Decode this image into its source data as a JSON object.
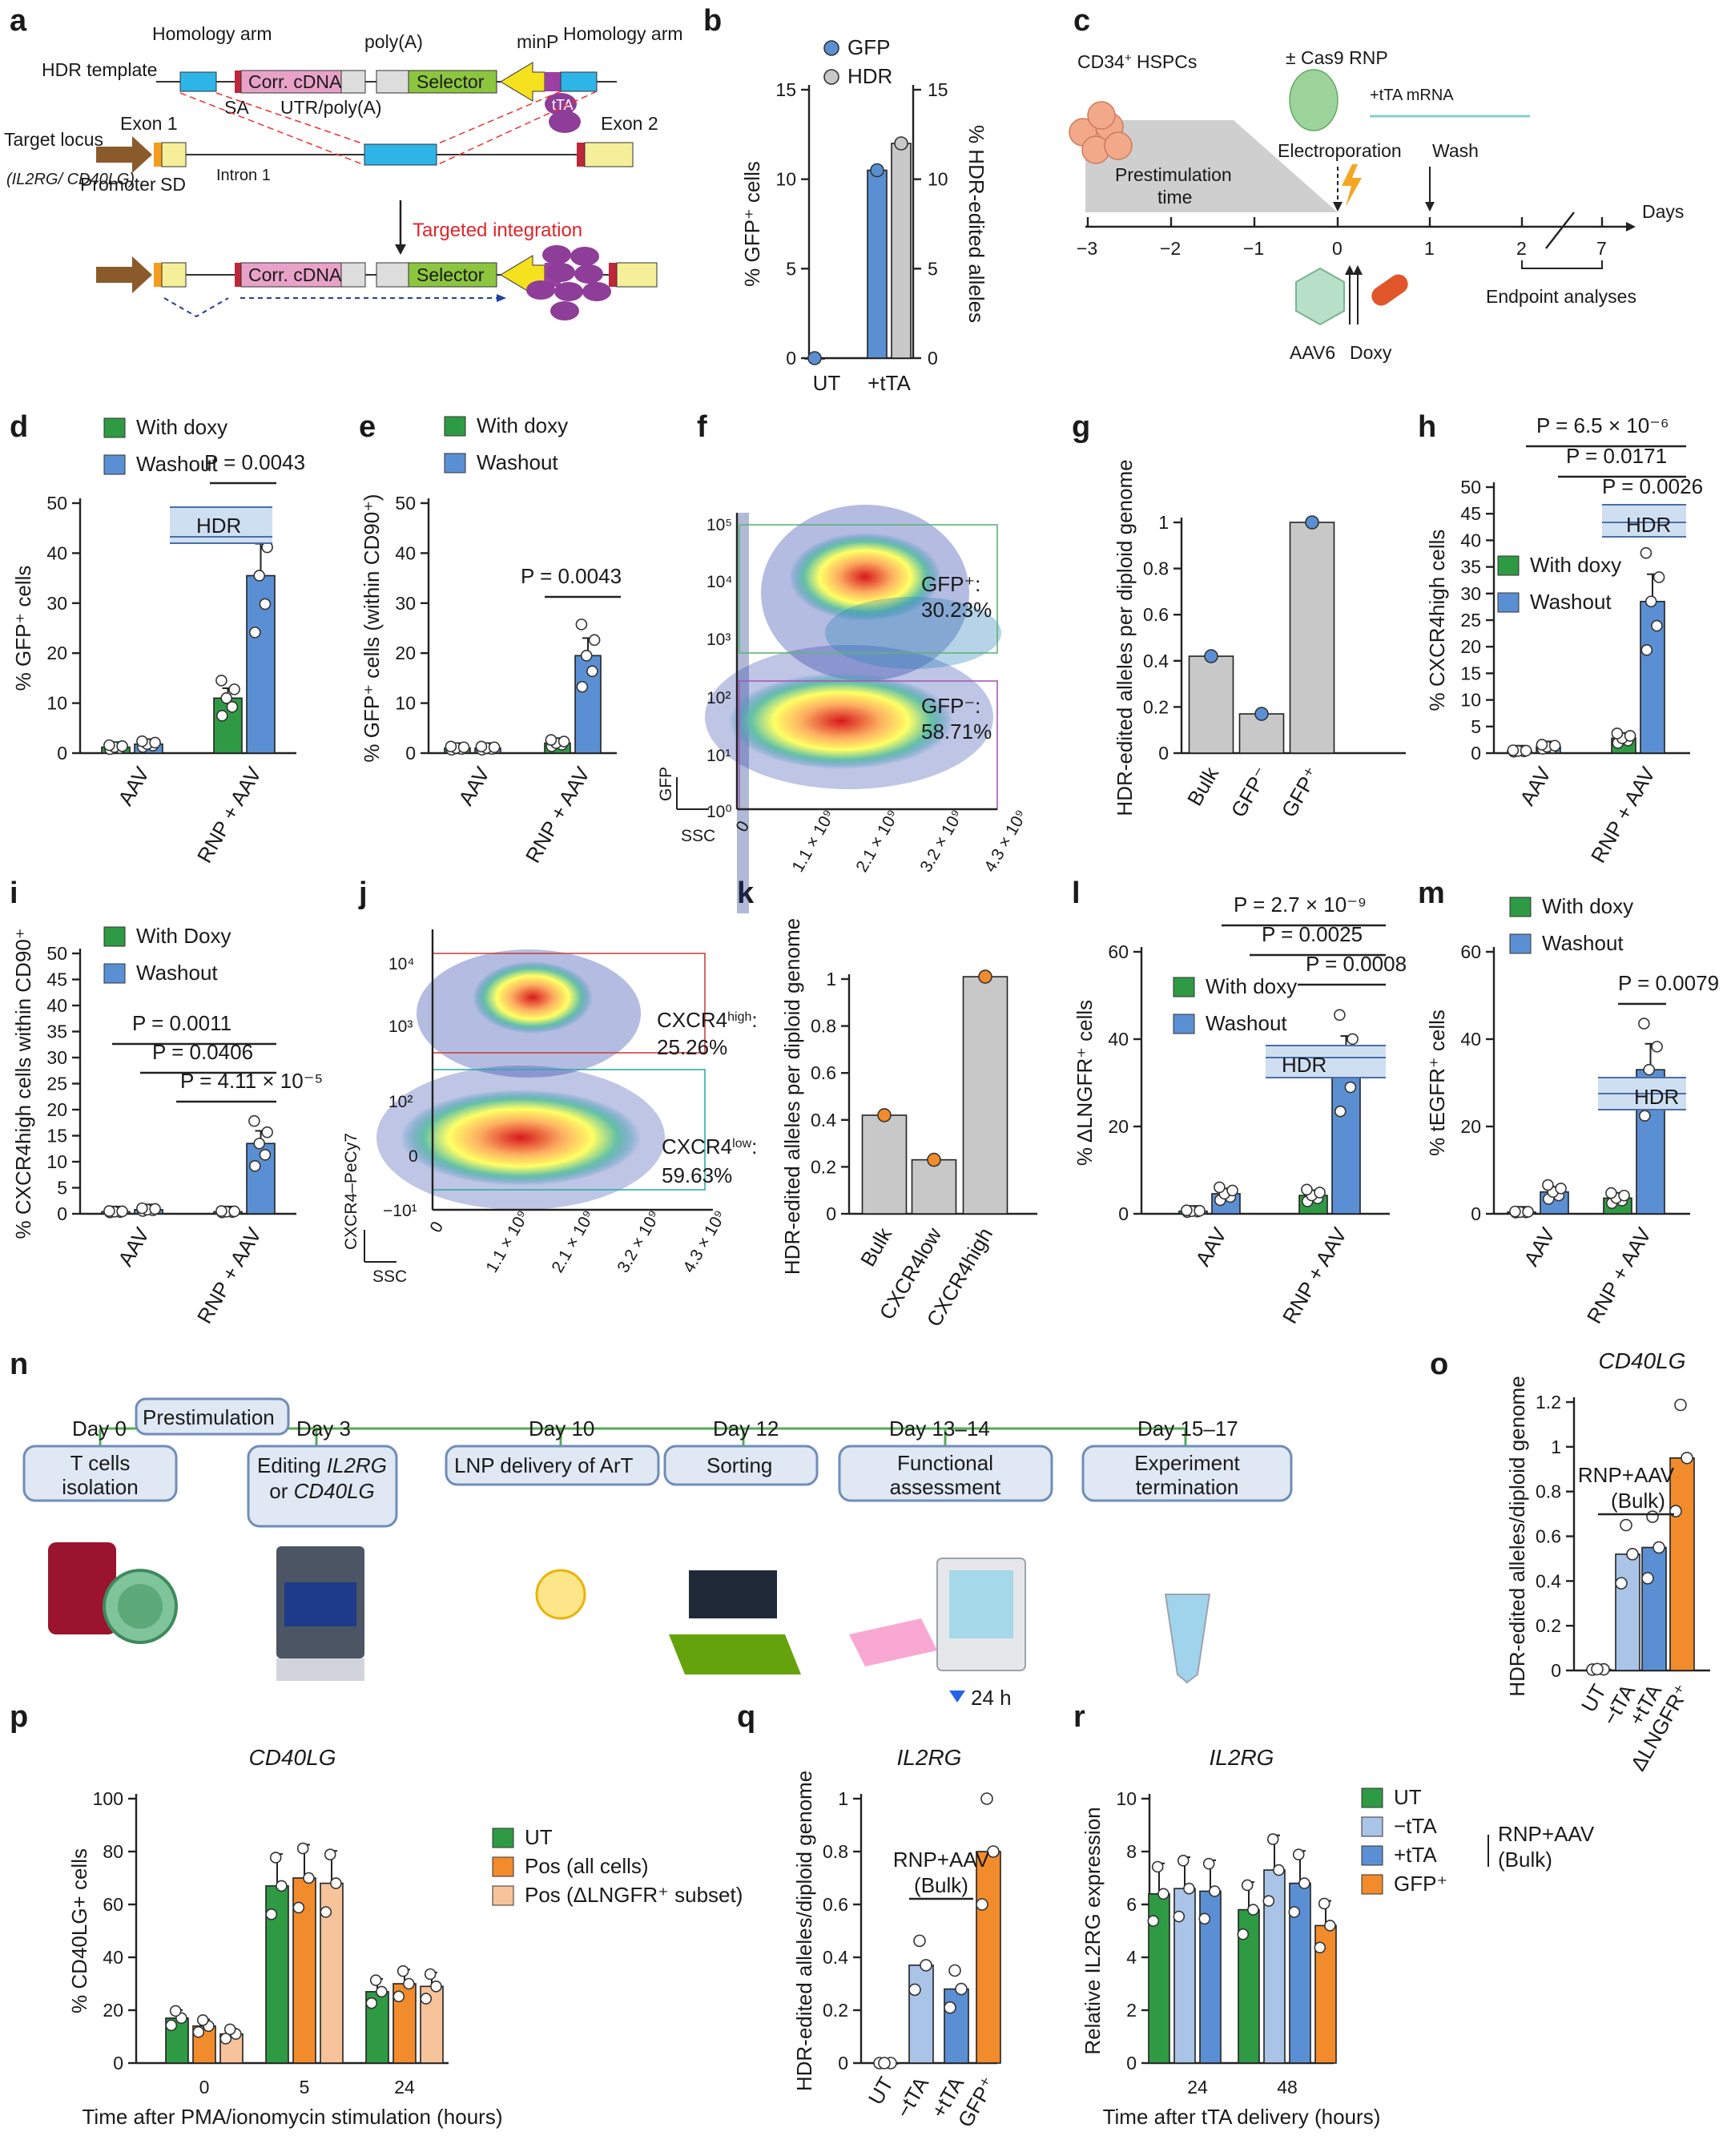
{
  "colors": {
    "green": "#2f9a44",
    "blue": "#5b8fd3",
    "gray": "#c8c8c8",
    "orange": "#f28b2b",
    "lightblue": "#aac4e8",
    "peach": "#f7c39a",
    "purple": "#8e3d98",
    "hdr": "#cfdff2"
  },
  "panel_letters": {
    "a": "a",
    "b": "b",
    "c": "c",
    "d": "d",
    "e": "e",
    "f": "f",
    "g": "g",
    "h": "h",
    "i": "i",
    "j": "j",
    "k": "k",
    "l": "l",
    "m": "m",
    "n": "n",
    "o": "o",
    "p": "p",
    "q": "q",
    "r": "r"
  },
  "panel_a": {
    "homology_arm_left": "Homology arm",
    "hdr_template": "HDR template",
    "poly_a": "poly(A)",
    "minp": "minP",
    "homology_arm_right": "Homology arm",
    "corr_cdna": "Corr. cDNA",
    "selector": "Selector",
    "sa": "SA",
    "utr_polya": "UTR/poly(A)",
    "tta": "tTA",
    "target_locus": "Target locus",
    "locus_genes": "(IL2RG/ CD40LG)",
    "exon1": "Exon 1",
    "exon2": "Exon 2",
    "promoter": "Promoter",
    "sd": "SD",
    "intron1": "Intron 1",
    "targeted_integration": "Targeted integration"
  },
  "panel_c": {
    "cells": "CD34",
    "cells_sup": "+",
    "cells_suffix": " HSPCs",
    "cas9": "± Cas9 RNP",
    "tta_mrna": "+tTA mRNA",
    "prestim": "Prestimulation",
    "time": "time",
    "electroporation": "Electroporation",
    "wash": "Wash",
    "days": "Days",
    "ticks": [
      "−3",
      "−2",
      "−1",
      "0",
      "1",
      "2",
      "7"
    ],
    "endpoint": "Endpoint analyses",
    "aav6": "AAV6",
    "doxy": "Doxy"
  },
  "panel_n": {
    "days": [
      "Day 0",
      "Day 3",
      "Day 10",
      "Day 12",
      "Day 13–14",
      "Day 15–17"
    ],
    "prestimulation": "Prestimulation",
    "steps": [
      "T cells isolation",
      "Editing IL2RG or CD40LG",
      "LNP delivery of ArT",
      "Sorting",
      "Functional assessment",
      "Experiment termination"
    ],
    "hours": "24 h"
  },
  "flow_f": {
    "ylabel": "GFP",
    "xlabel": "SSC",
    "gate_high": "GFP⁺:",
    "pct_high": "30.23%",
    "gate_low": "GFP⁻:",
    "pct_low": "58.71%",
    "y_ticks": [
      "10⁵",
      "10⁴",
      "10³",
      "10²",
      "10¹",
      "10⁰"
    ],
    "x_ticks": [
      "0",
      "1.1 × 10⁹",
      "2.1 × 10⁹",
      "3.2 × 10⁹",
      "4.3 × 10⁹"
    ]
  },
  "flow_j": {
    "ylabel": "CXCR4–PeCy7",
    "xlabel": "SSC",
    "gate_high": "CXCR4high:",
    "pct_high": "25.26%",
    "gate_low": "CXCR4low:",
    "pct_low": "59.63%",
    "y_ticks": [
      "10⁴",
      "10³",
      "10²",
      "0",
      "−10¹"
    ],
    "x_ticks": [
      "0",
      "1.1 × 10⁹",
      "2.1 × 10⁹",
      "3.2 × 10⁹",
      "4.3 × 10⁹"
    ]
  },
  "chart_data": [
    {
      "id": "b",
      "type": "bar",
      "categories": [
        "UT",
        "+tTA"
      ],
      "series": [
        {
          "name": "GFP",
          "values": [
            0,
            10.5
          ]
        },
        {
          "name": "HDR",
          "values": [
            null,
            12
          ]
        }
      ],
      "ylabel": "% GFP⁺ cells",
      "y2label": "% HDR-edited alleles",
      "ylim": [
        0,
        15
      ],
      "y2lim": [
        0,
        15
      ]
    },
    {
      "id": "d",
      "type": "bar",
      "categories": [
        "AAV",
        "RNP + AAV"
      ],
      "series": [
        {
          "name": "With doxy",
          "values": [
            1.2,
            11
          ]
        },
        {
          "name": "Washout",
          "values": [
            1.8,
            35.5
          ]
        }
      ],
      "ylabel": "% GFP⁺ cells",
      "ylim": [
        0,
        50
      ],
      "annotations": [
        "P = 0.0043",
        "HDR"
      ]
    },
    {
      "id": "e",
      "type": "bar",
      "categories": [
        "AAV",
        "RNP + AAV"
      ],
      "series": [
        {
          "name": "With doxy",
          "values": [
            1,
            2
          ]
        },
        {
          "name": "Washout",
          "values": [
            1,
            19.5
          ]
        }
      ],
      "ylabel": "% GFP⁺ cells (within CD90⁺)",
      "ylim": [
        0,
        50
      ],
      "annotations": [
        "P = 0.0043"
      ]
    },
    {
      "id": "g",
      "type": "bar",
      "categories": [
        "Bulk",
        "GFP⁻",
        "GFP⁺"
      ],
      "values": [
        0.42,
        0.17,
        1.0
      ],
      "ylabel": "HDR-edited alleles per diploid genome",
      "ylim": [
        0,
        1
      ]
    },
    {
      "id": "h",
      "type": "bar",
      "categories": [
        "AAV",
        "RNP + AAV"
      ],
      "series": [
        {
          "name": "With doxy",
          "values": [
            0.4,
            2.8
          ]
        },
        {
          "name": "Washout",
          "values": [
            1.2,
            28.5
          ]
        }
      ],
      "ylabel": "% CXCR4high cells",
      "ylim": [
        0,
        50
      ],
      "annotations": [
        "P = 6.5 × 10⁻⁶",
        "P = 0.0171",
        "P = 0.0026",
        "HDR"
      ]
    },
    {
      "id": "i",
      "type": "bar",
      "categories": [
        "AAV",
        "RNP + AAV"
      ],
      "series": [
        {
          "name": "With Doxy",
          "values": [
            0.4,
            0.4
          ]
        },
        {
          "name": "Washout",
          "values": [
            0.8,
            13.5
          ]
        }
      ],
      "ylabel": "% CXCR4high cells within CD90⁺",
      "ylim": [
        0,
        50
      ],
      "annotations": [
        "P = 0.0011",
        "P = 0.0406",
        "P = 4.11 × 10⁻⁵"
      ]
    },
    {
      "id": "k",
      "type": "bar",
      "categories": [
        "Bulk",
        "CXCR4low",
        "CXCR4high"
      ],
      "values": [
        0.42,
        0.23,
        1.01
      ],
      "ylabel": "HDR-edited alleles per diploid genome",
      "ylim": [
        0,
        1
      ]
    },
    {
      "id": "l",
      "type": "bar",
      "categories": [
        "AAV",
        "RNP + AAV"
      ],
      "series": [
        {
          "name": "With doxy",
          "values": [
            0.6,
            4.2
          ]
        },
        {
          "name": "Washout",
          "values": [
            4.6,
            34.5
          ]
        }
      ],
      "ylabel": "% ΔLNGFR⁺ cells",
      "ylim": [
        0,
        60
      ],
      "annotations": [
        "P = 2.7 × 10⁻⁹",
        "P = 0.0025",
        "P = 0.0008",
        "HDR"
      ]
    },
    {
      "id": "m",
      "type": "bar",
      "categories": [
        "AAV",
        "RNP + AAV"
      ],
      "series": [
        {
          "name": "With doxy",
          "values": [
            0.4,
            3.6
          ]
        },
        {
          "name": "Washout",
          "values": [
            5,
            33
          ]
        }
      ],
      "ylabel": "% tEGFR⁺ cells",
      "ylim": [
        0,
        60
      ],
      "annotations": [
        "P = 0.0079",
        "HDR"
      ]
    },
    {
      "id": "o",
      "type": "bar",
      "title": "CD40LG",
      "categories": [
        "UT",
        "−tTA",
        "+tTA",
        "ΔLNGFR⁺"
      ],
      "values": [
        0.005,
        0.52,
        0.55,
        0.95
      ],
      "ylabel": "HDR-edited alleles/diploid genome",
      "ylim": [
        0,
        1.2
      ],
      "annotations": [
        "RNP+AAV (Bulk)"
      ]
    },
    {
      "id": "p",
      "type": "bar",
      "title": "CD40LG",
      "categories": [
        "0",
        "5",
        "24"
      ],
      "series": [
        {
          "name": "UT",
          "values": [
            17,
            67,
            27
          ]
        },
        {
          "name": "Pos (all cells)",
          "values": [
            14,
            70,
            30
          ]
        },
        {
          "name": "Pos (ΔLNGFR⁺ subset)",
          "values": [
            11,
            68,
            29
          ]
        }
      ],
      "ylabel": "% CD40LG+ cells",
      "xlabel": "Time after PMA/ionomycin stimulation (hours)",
      "ylim": [
        0,
        100
      ]
    },
    {
      "id": "q",
      "type": "bar",
      "title": "IL2RG",
      "categories": [
        "UT",
        "−tTA",
        "+tTA",
        "GFP⁺"
      ],
      "values": [
        0,
        0.37,
        0.28,
        0.8
      ],
      "ylabel": "HDR-edited alleles/diploid genome",
      "ylim": [
        0,
        1
      ],
      "annotations": [
        "RNP+AAV (Bulk)"
      ]
    },
    {
      "id": "r",
      "type": "bar",
      "title": "IL2RG",
      "categories": [
        "24",
        "48"
      ],
      "series": [
        {
          "name": "UT",
          "values": [
            6.4,
            5.8
          ]
        },
        {
          "name": "−tTA",
          "values": [
            6.6,
            7.3
          ]
        },
        {
          "name": "+tTA",
          "values": [
            6.5,
            6.8
          ]
        },
        {
          "name": "GFP⁺",
          "values": [
            null,
            5.2
          ]
        }
      ],
      "ylabel": "Relative IL2RG expression",
      "xlabel": "Time after tTA delivery (hours)",
      "ylim": [
        0,
        10
      ],
      "annotations": [
        "RNP+AAV (Bulk)"
      ]
    }
  ]
}
